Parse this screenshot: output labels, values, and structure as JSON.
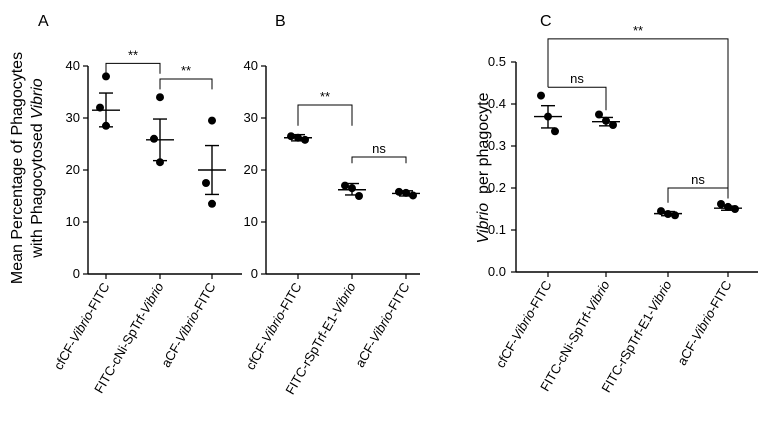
{
  "chart_data": [
    {
      "type": "scatter",
      "panel": "A",
      "ylabel_line1": "Mean Percentage of Phagocytes",
      "ylabel_line2_prefix": "with Phagocytosed ",
      "ylabel_line2_italic": "Vibrio",
      "ylim": [
        0,
        40
      ],
      "yticks": [
        0,
        10,
        20,
        30,
        40
      ],
      "categories": [
        {
          "parts": [
            {
              "t": "cfCF-",
              "i": false
            },
            {
              "t": "Vibrio",
              "i": true
            },
            {
              "t": "-FITC",
              "i": false
            }
          ],
          "points": [
            38,
            32,
            28.5
          ],
          "mean": 31.5,
          "sem_hi": 34.8,
          "sem_lo": 28.3
        },
        {
          "parts": [
            {
              "t": "FITC-cNi-SpTrf-",
              "i": false
            },
            {
              "t": "Vibrio",
              "i": true
            }
          ],
          "points": [
            34,
            26,
            21.5
          ],
          "mean": 25.8,
          "sem_hi": 29.8,
          "sem_lo": 21.8
        },
        {
          "parts": [
            {
              "t": "aCF-",
              "i": false
            },
            {
              "t": "Vibrio",
              "i": true
            },
            {
              "t": "-FITC",
              "i": false
            }
          ],
          "points": [
            29.5,
            17.5,
            13.5
          ],
          "mean": 20,
          "sem_hi": 24.7,
          "sem_lo": 15.3
        }
      ],
      "brackets": [
        {
          "from": 0,
          "to": 1,
          "y": 40.5,
          "drop_from": 38.5,
          "drop_to": 38.5,
          "label": "**"
        },
        {
          "from": 1,
          "to": 2,
          "y": 37.5,
          "drop_from": 35.5,
          "drop_to": 35.5,
          "label": "**"
        }
      ]
    },
    {
      "type": "scatter",
      "panel": "B",
      "ylim": [
        0,
        40
      ],
      "yticks": [
        0,
        10,
        20,
        30,
        40
      ],
      "categories": [
        {
          "parts": [
            {
              "t": "cfCF-",
              "i": false
            },
            {
              "t": "Vibrio",
              "i": true
            },
            {
              "t": "-FITC",
              "i": false
            }
          ],
          "points": [
            26.5,
            26.2,
            25.8
          ],
          "mean": 26.2,
          "sem_hi": 26.8,
          "sem_lo": 25.6
        },
        {
          "parts": [
            {
              "t": "FITC-rSpTrf-E1-",
              "i": false
            },
            {
              "t": "Vibrio",
              "i": true
            }
          ],
          "points": [
            17,
            16.5,
            15
          ],
          "mean": 16.2,
          "sem_hi": 17.4,
          "sem_lo": 15.2
        },
        {
          "parts": [
            {
              "t": "aCF-",
              "i": false
            },
            {
              "t": "Vibrio",
              "i": true
            },
            {
              "t": "-FITC",
              "i": false
            }
          ],
          "points": [
            15.8,
            15.6,
            15.1
          ],
          "mean": 15.5,
          "sem_hi": 16,
          "sem_lo": 15
        }
      ],
      "brackets": [
        {
          "from": 0,
          "to": 1,
          "y": 32.5,
          "drop_from": 28.5,
          "drop_to": 28.5,
          "label": "**"
        },
        {
          "from": 1,
          "to": 2,
          "y": 22.5,
          "drop_from": 21.3,
          "drop_to": 21.3,
          "label": "ns"
        }
      ]
    },
    {
      "type": "scatter",
      "panel": "C",
      "ylabel_italic": "Vibrio",
      "ylabel_suffix": "  per phagocyte",
      "ylim": [
        0,
        0.5
      ],
      "yticks": [
        "0.0",
        "0.1",
        "0.2",
        "0.3",
        "0.4",
        "0.5"
      ],
      "categories": [
        {
          "parts": [
            {
              "t": "cfCF-",
              "i": false
            },
            {
              "t": "Vibrio",
              "i": true
            },
            {
              "t": "-FITC",
              "i": false
            }
          ],
          "points": [
            0.42,
            0.37,
            0.335
          ],
          "mean": 0.37,
          "sem_hi": 0.396,
          "sem_lo": 0.343
        },
        {
          "parts": [
            {
              "t": "FITC-cNi-SpTrf-",
              "i": false
            },
            {
              "t": "Vibrio",
              "i": true
            }
          ],
          "points": [
            0.375,
            0.36,
            0.35
          ],
          "mean": 0.358,
          "sem_hi": 0.368,
          "sem_lo": 0.348
        },
        {
          "parts": [
            {
              "t": "FITC-rSpTrf-E1-",
              "i": false
            },
            {
              "t": "Vibrio",
              "i": true
            }
          ],
          "points": [
            0.145,
            0.138,
            0.135
          ],
          "mean": 0.139,
          "sem_hi": 0.144,
          "sem_lo": 0.134
        },
        {
          "parts": [
            {
              "t": "aCF-",
              "i": false
            },
            {
              "t": "Vibrio",
              "i": true
            },
            {
              "t": "-FITC",
              "i": false
            }
          ],
          "points": [
            0.162,
            0.155,
            0.15
          ],
          "mean": 0.152,
          "sem_hi": 0.157,
          "sem_lo": 0.147
        }
      ],
      "brackets": [
        {
          "from": 0,
          "to": 1,
          "y": 0.44,
          "drop_from": 0.44,
          "drop_to": 0.385,
          "label": "ns"
        },
        {
          "from": 0,
          "to": 3,
          "y": 0.555,
          "drop_from": 0.44,
          "drop_to": 0.2,
          "label": "**",
          "drop_to_index": 2
        },
        {
          "from": 2,
          "to": 3,
          "y": 0.2,
          "drop_from": 0.165,
          "drop_to": 0.175,
          "label": "ns"
        }
      ]
    }
  ]
}
